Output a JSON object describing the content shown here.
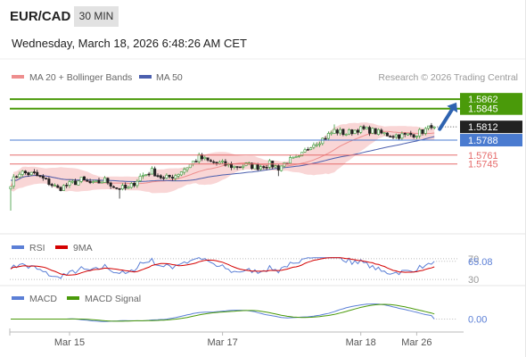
{
  "header": {
    "pair": "EUR/CAD",
    "timeframe": "30 MIN",
    "datetime": "Wednesday, March 18, 2026 6:48:26 AM CET"
  },
  "legend": {
    "ma20": "MA 20 + Bollinger Bands",
    "ma50": "MA 50",
    "source": "Research © 2026 Trading Central"
  },
  "colors": {
    "up_candle": "#3a9a3a",
    "down_candle": "#222222",
    "bollinger_fill": "#f9d6d6",
    "ma20": "#ee8e8e",
    "ma50": "#4b5fae",
    "target_green": "#4a9a0a",
    "pivot_blue": "#4a7bd0",
    "support_red": "#e66b6b",
    "rsi": "#5b7fd6",
    "rsi_ma": "#d40000",
    "macd": "#5b7fd6",
    "macd_signal": "#4a9a0a",
    "arrow": "#2e63b0"
  },
  "chart_data": [
    {
      "type": "candlestick",
      "title": "EUR/CAD",
      "ylim": [
        1.563,
        1.588
      ],
      "levels": [
        {
          "value": 1.5862,
          "label": "1.5862",
          "kind": "target",
          "color": "#4a9a0a"
        },
        {
          "value": 1.5845,
          "label": "1.5845",
          "kind": "target",
          "color": "#4a9a0a"
        },
        {
          "value": 1.5812,
          "label": "1.5812",
          "kind": "last",
          "color": "#222222"
        },
        {
          "value": 1.5788,
          "label": "1.5788",
          "kind": "pivot",
          "color": "#4a7bd0"
        },
        {
          "value": 1.5761,
          "label": "1.5761",
          "kind": "support",
          "color": "#e66b6b"
        },
        {
          "value": 1.5745,
          "label": "1.5745",
          "kind": "support",
          "color": "#e66b6b"
        }
      ],
      "last_price": 1.5812,
      "projection": {
        "from": 1.5808,
        "to": 1.5856
      },
      "close_anchors": [
        [
          0,
          1.571
        ],
        [
          3,
          1.573
        ],
        [
          8,
          1.5726
        ],
        [
          12,
          1.5715
        ],
        [
          16,
          1.57
        ],
        [
          20,
          1.5708
        ],
        [
          24,
          1.5716
        ],
        [
          28,
          1.5708
        ],
        [
          32,
          1.5716
        ],
        [
          36,
          1.5702
        ],
        [
          40,
          1.57
        ],
        [
          44,
          1.5722
        ],
        [
          48,
          1.5732
        ],
        [
          52,
          1.5718
        ],
        [
          56,
          1.5725
        ],
        [
          60,
          1.574
        ],
        [
          64,
          1.5757
        ],
        [
          68,
          1.5748
        ],
        [
          72,
          1.5745
        ],
        [
          76,
          1.574
        ],
        [
          80,
          1.5743
        ],
        [
          84,
          1.574
        ],
        [
          88,
          1.5745
        ],
        [
          91,
          1.5738
        ],
        [
          94,
          1.575
        ],
        [
          98,
          1.5755
        ],
        [
          102,
          1.578
        ],
        [
          106,
          1.579
        ],
        [
          110,
          1.5805
        ],
        [
          114,
          1.58
        ],
        [
          118,
          1.5808
        ],
        [
          122,
          1.5806
        ],
        [
          126,
          1.58
        ],
        [
          130,
          1.5797
        ],
        [
          134,
          1.5796
        ],
        [
          138,
          1.58
        ],
        [
          142,
          1.5809
        ],
        [
          144,
          1.5812
        ]
      ],
      "candle_count": 145,
      "xlabels": [
        {
          "index": 20,
          "label": "Mar 15"
        },
        {
          "index": 72,
          "label": "Mar 17"
        },
        {
          "index": 119,
          "label": "Mar 18"
        },
        {
          "index": 138,
          "label": "Mar 26"
        }
      ]
    },
    {
      "type": "line",
      "title": "RSI",
      "series": [
        {
          "name": "RSI",
          "color": "#5b7fd6"
        },
        {
          "name": "9MA",
          "color": "#d40000"
        }
      ],
      "ylim": [
        25,
        75
      ],
      "levels": [
        {
          "value": 70,
          "label": "70"
        },
        {
          "value": 30,
          "label": "30"
        }
      ],
      "last_value": 65.08,
      "last_label": "65.08"
    },
    {
      "type": "line",
      "title": "MACD",
      "series": [
        {
          "name": "MACD",
          "color": "#5b7fd6"
        },
        {
          "name": "MACD Signal",
          "color": "#4a9a0a"
        }
      ],
      "ylim": [
        -0.0012,
        0.0012
      ],
      "zero_label": "0.00",
      "last_value": 0.0
    }
  ]
}
